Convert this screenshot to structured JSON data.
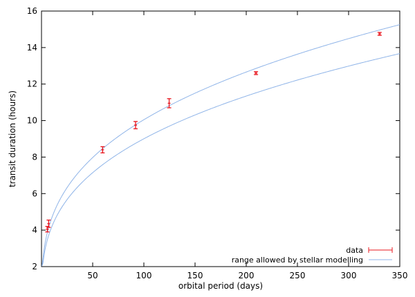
{
  "chart_data": {
    "type": "scatter",
    "xlabel": "orbital period (days)",
    "ylabel": "transit duration (hours)",
    "xlim": [
      0,
      350
    ],
    "ylim": [
      2,
      16
    ],
    "xticks": [
      50,
      100,
      150,
      200,
      250,
      300,
      350
    ],
    "yticks": [
      2,
      4,
      6,
      8,
      10,
      12,
      14,
      16
    ],
    "grid": false,
    "legend_position": "bottom-right",
    "series": [
      {
        "name": "data",
        "kind": "errorbar",
        "color": "#e8141c",
        "points": [
          {
            "x": 5.7,
            "y": 4.05,
            "err": 0.15
          },
          {
            "x": 7.0,
            "y": 4.35,
            "err": 0.2
          },
          {
            "x": 59.7,
            "y": 8.4,
            "err": 0.17
          },
          {
            "x": 91.9,
            "y": 9.75,
            "err": 0.2
          },
          {
            "x": 124.7,
            "y": 10.95,
            "err": 0.25
          },
          {
            "x": 209.5,
            "y": 12.6,
            "err": 0.08
          },
          {
            "x": 330.3,
            "y": 14.75,
            "err": 0.08
          }
        ]
      },
      {
        "name": "range allowed by stellar modelling",
        "kind": "band",
        "color": "#8fb4e8",
        "upper": {
          "a": 2.165,
          "exponent": 0.3333
        },
        "lower": {
          "a": 1.94,
          "exponent": 0.3333
        }
      }
    ]
  }
}
